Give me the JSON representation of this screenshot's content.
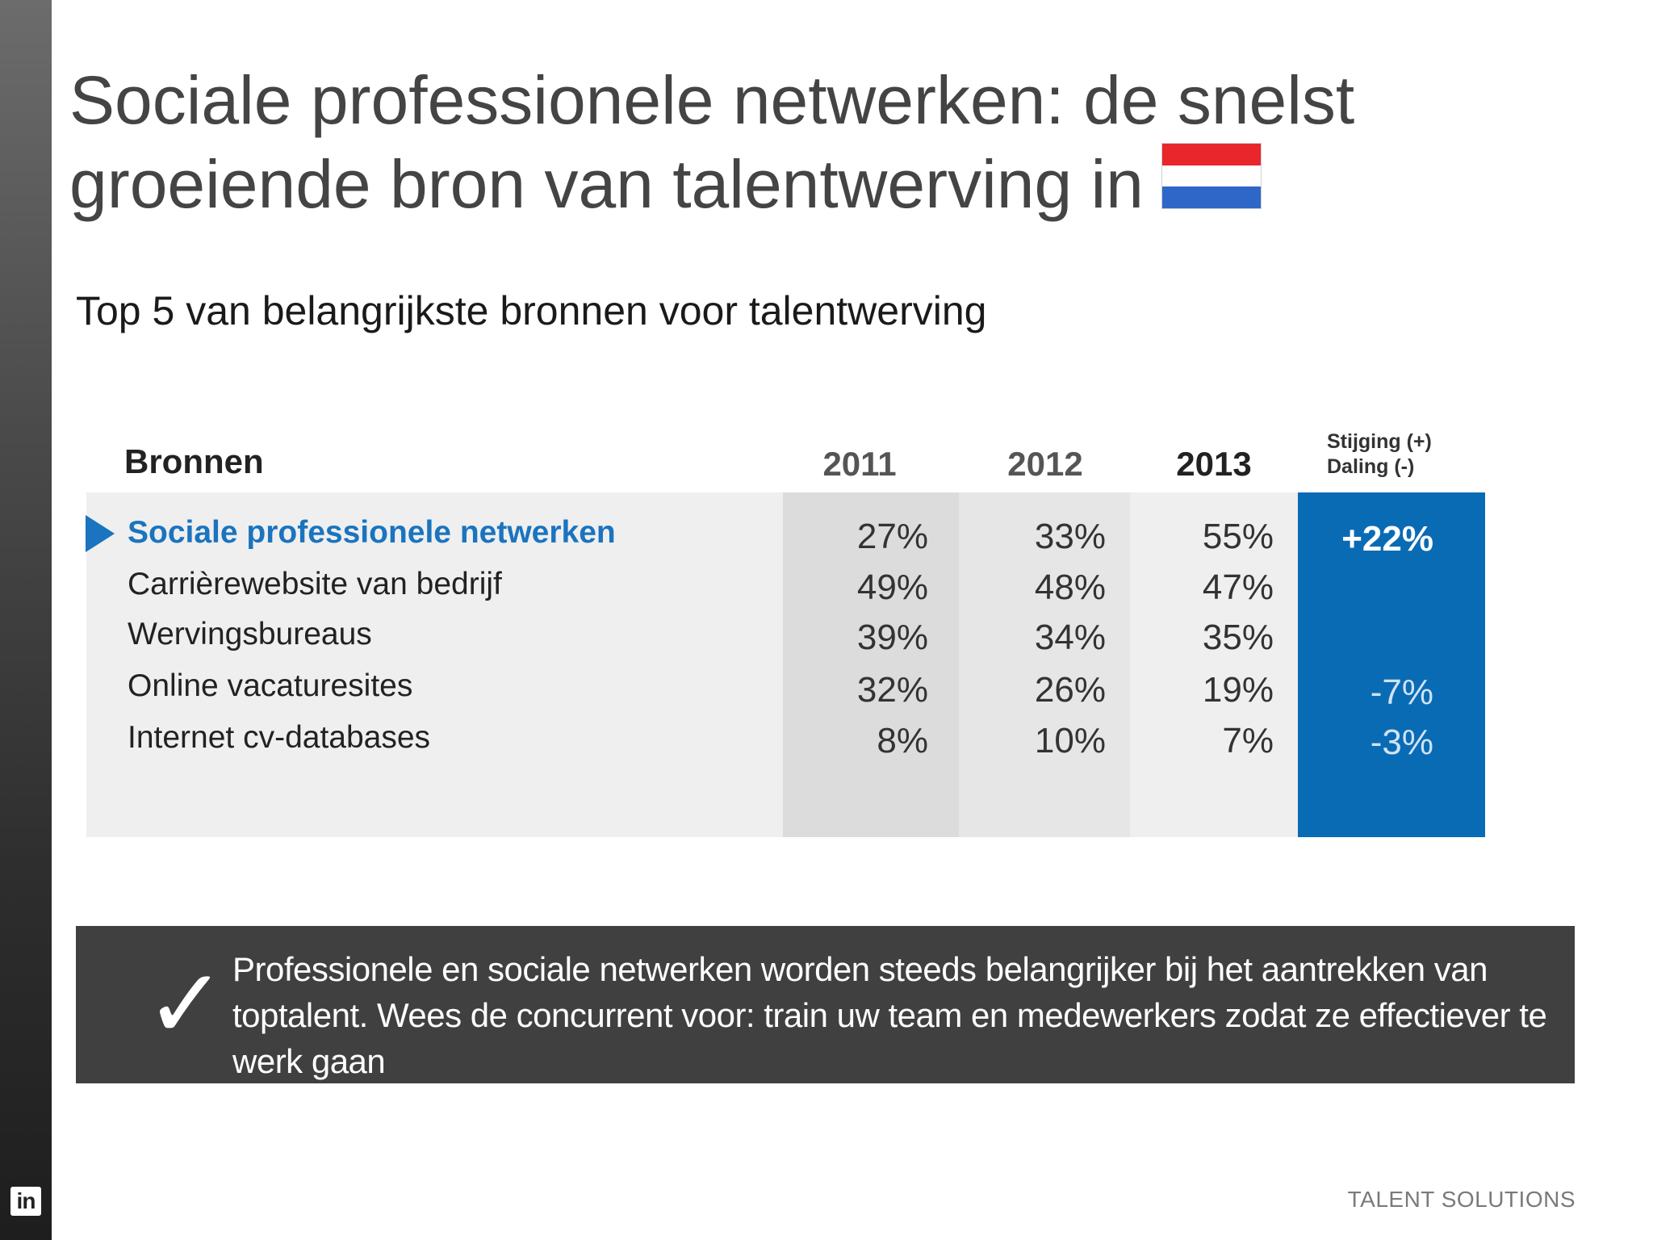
{
  "slide": {
    "title": "Sociale professionele netwerken: de snelst groeiende bron van talentwerving in",
    "subtitle": "Top 5 van belangrijkste bronnen voor talentwerving",
    "flag_icon": "netherlands-flag-icon"
  },
  "table": {
    "headers": {
      "source": "Bronnen",
      "y2011": "2011",
      "y2012": "2012",
      "y2013": "2013",
      "change_up": "Stijging (+)",
      "change_down": "Daling (-)"
    },
    "rows": [
      {
        "label": "Sociale professionele netwerken",
        "v2011": "27%",
        "v2012": "33%",
        "v2013": "55%",
        "change": "+22%"
      },
      {
        "label": "Carrièrewebsite van bedrijf",
        "v2011": "49%",
        "v2012": "48%",
        "v2013": "47%",
        "change": ""
      },
      {
        "label": "Wervingsbureaus",
        "v2011": "39%",
        "v2012": "34%",
        "v2013": "35%",
        "change": ""
      },
      {
        "label": "Online vacaturesites",
        "v2011": "32%",
        "v2012": "26%",
        "v2013": "19%",
        "change": "-7%"
      },
      {
        "label": "Internet cv-databases",
        "v2011": "8%",
        "v2012": "10%",
        "v2013": "7%",
        "change": "-3%"
      }
    ]
  },
  "callout": {
    "text": "Professionele en sociale netwerken worden steeds belangrijker bij het aantrekken van toptalent. Wees de concurrent voor: train uw team en medewerkers zodat ze effectiever te werk gaan",
    "check_icon": "checkmark-icon"
  },
  "footer": {
    "brand": "TALENT SOLUTIONS",
    "logo_text": "in"
  },
  "colors": {
    "accent_blue": "#0a6bb5",
    "highlight_text": "#1a74bf",
    "callout_bg": "#404040"
  }
}
